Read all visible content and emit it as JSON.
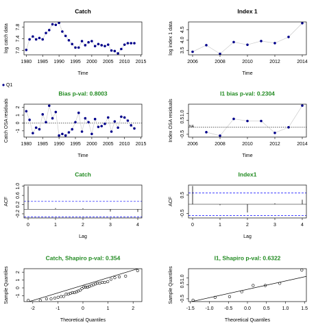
{
  "chart_data": [
    {
      "type": "line",
      "title": "Catch",
      "title_color": "#000000",
      "xlabel": "Time",
      "ylabel": "log catch data",
      "color": "#00008b",
      "x": [
        1980,
        1981,
        1982,
        1983,
        1984,
        1985,
        1986,
        1987,
        1988,
        1989,
        1990,
        1991,
        1992,
        1993,
        1994,
        1995,
        1996,
        1997,
        1998,
        1999,
        2000,
        2001,
        2002,
        2003,
        2004,
        2005,
        2006,
        2007,
        2008,
        2009,
        2010,
        2011,
        2012,
        2013
      ],
      "values": [
        7.02,
        7.38,
        7.48,
        7.38,
        7.43,
        7.38,
        7.6,
        7.7,
        7.9,
        7.88,
        7.95,
        7.65,
        7.5,
        7.35,
        7.22,
        7.1,
        7.1,
        7.32,
        7.18,
        7.28,
        7.32,
        7.15,
        7.22,
        7.18,
        7.15,
        7.2,
        7.0,
        6.98,
        6.9,
        7.05,
        7.2,
        7.25,
        7.25,
        7.25
      ],
      "xlim": [
        1979.3,
        2015.3
      ],
      "ylim": [
        6.85,
        7.98
      ],
      "xticks": [
        1980,
        1985,
        1990,
        1995,
        2000,
        2005,
        2010,
        2015
      ],
      "yticks": [
        {
          "value": 7,
          "label": "7.0"
        },
        7.4,
        7.8
      ]
    },
    {
      "type": "line",
      "title": "Index 1",
      "title_color": "#000000",
      "xlabel": "Time",
      "ylabel": "log index 1 data",
      "color": "#00008b",
      "x": [
        2006,
        2007,
        2008,
        2009,
        2010,
        2011,
        2012,
        2013,
        2014
      ],
      "values": [
        3.43,
        3.75,
        3.33,
        3.9,
        3.77,
        3.95,
        3.85,
        4.15,
        4.82
      ],
      "xlim": [
        2005.7,
        2014.3
      ],
      "ylim": [
        3.28,
        4.88
      ],
      "xticks": [
        2006,
        2008,
        2010,
        2012,
        2014
      ],
      "yticks": [
        3.5,
        {
          "value": 4,
          "label": "4.0"
        },
        4.5
      ]
    },
    {
      "type": "residuals",
      "title": "Bias p-val: 0.8003",
      "title_color": "#228b22",
      "xlabel": "Time",
      "ylabel": "Catch OSA residuals",
      "x": [
        1980,
        1981,
        1982,
        1983,
        1984,
        1985,
        1986,
        1987,
        1988,
        1989,
        1990,
        1991,
        1992,
        1993,
        1994,
        1995,
        1996,
        1997,
        1998,
        1999,
        2000,
        2001,
        2002,
        2003,
        2004,
        2005,
        2006,
        2007,
        2008,
        2009,
        2010,
        2011,
        2012,
        2013
      ],
      "series": [
        {
          "name": "Q1",
          "color": "#00008b",
          "values": [
            1.5,
            0.4,
            -1.3,
            -0.6,
            -0.8,
            1.1,
            0.1,
            2.2,
            0.6,
            1.4,
            -1.6,
            -1.4,
            -1.6,
            -1.2,
            -0.8,
            0.1,
            1.3,
            -1.1,
            0.6,
            0.1,
            -1.4,
            0.5,
            -0.5,
            -0.4,
            -0.1,
            0.7,
            -1.1,
            0.2,
            -0.6,
            0.8,
            0.7,
            0.3,
            -0.3,
            -0.7
          ]
        }
      ],
      "ref_line": 0,
      "xlim": [
        1979.3,
        2015.3
      ],
      "ylim": [
        -1.8,
        2.4
      ],
      "xticks": [
        1980,
        1985,
        1990,
        1995,
        2000,
        2005,
        2010,
        2015
      ],
      "yticks": [
        -1,
        0,
        1,
        2
      ]
    },
    {
      "type": "residuals",
      "title": "I1 bias p-val: 0.2304",
      "title_color": "#228b22",
      "xlabel": "Time",
      "ylabel": "Index OSA residuals",
      "color": "#00008b",
      "x": [
        2006,
        2007,
        2008,
        2009,
        2010,
        2011,
        2012,
        2013,
        2014
      ],
      "values": [
        null,
        -0.35,
        -0.6,
        0.6,
        0.45,
        0.45,
        -0.4,
        0.0,
        1.55
      ],
      "annotation": "NA",
      "ref_line": 0,
      "xlim": [
        2005.7,
        2014.3
      ],
      "ylim": [
        -0.7,
        1.65
      ],
      "xticks": [
        2006,
        2008,
        2010,
        2012,
        2014
      ],
      "yticks": [
        -0.5,
        0.5,
        {
          "value": 1,
          "label": "1.0"
        }
      ]
    },
    {
      "type": "acf",
      "title": "Catch",
      "title_color": "#228b22",
      "xlabel": "Lag",
      "ylabel": "ACF",
      "color": "#000000",
      "ci_color": "#0000ff",
      "x": [
        0,
        1,
        2,
        3,
        4
      ],
      "values": [
        1,
        0.05,
        0.04,
        -0.1,
        -0.12
      ],
      "ci": 0.34,
      "xlim": [
        -0.15,
        4.15
      ],
      "ylim": [
        -0.38,
        1.05
      ],
      "xticks": [
        0,
        1,
        2,
        3,
        4
      ],
      "yticks": [
        -0.2,
        0.2,
        0.6,
        {
          "value": 1,
          "label": "1.0"
        }
      ]
    },
    {
      "type": "acf",
      "title": "Index1",
      "title_color": "#228b22",
      "xlabel": "Lag",
      "ylabel": "ACF",
      "color": "#000000",
      "ci_color": "#0000ff",
      "x": [
        0,
        1,
        2,
        3,
        4
      ],
      "values": [
        1,
        -0.05,
        -0.45,
        0.05,
        0.25
      ],
      "ci": 0.62,
      "xlim": [
        -0.15,
        4.15
      ],
      "ylim": [
        -0.75,
        1.05
      ],
      "xticks": [
        0,
        1,
        2,
        3,
        4
      ],
      "yticks": [
        -0.5,
        0.5
      ]
    },
    {
      "type": "qq",
      "title": "Catch, Shapiro p-val: 0.354",
      "title_color": "#228b22",
      "xlabel": "Theoretical Quantiles",
      "ylabel": "Sample Quantiles",
      "color": "#000000",
      "x": [
        -2.18,
        -1.7,
        -1.45,
        -1.27,
        -1.12,
        -0.99,
        -0.87,
        -0.77,
        -0.67,
        -0.58,
        -0.5,
        -0.42,
        -0.34,
        -0.26,
        -0.19,
        -0.11,
        -0.04,
        0.04,
        0.11,
        0.19,
        0.26,
        0.34,
        0.42,
        0.5,
        0.58,
        0.67,
        0.77,
        0.87,
        0.99,
        1.12,
        1.27,
        1.45,
        1.7,
        2.18
      ],
      "values": [
        -1.6,
        -1.6,
        -1.4,
        -1.4,
        -1.3,
        -1.2,
        -1.1,
        -1.1,
        -0.8,
        -0.8,
        -0.7,
        -0.6,
        -0.6,
        -0.5,
        -0.4,
        -0.3,
        -0.1,
        0.1,
        0.1,
        0.1,
        0.2,
        0.3,
        0.4,
        0.5,
        0.6,
        0.6,
        0.7,
        0.7,
        0.8,
        1.1,
        1.3,
        1.4,
        1.5,
        2.2
      ],
      "qq_line": {
        "x": [
          -2.35,
          2.35
        ],
        "y": [
          -1.95,
          2.6
        ]
      },
      "xlim": [
        -2.35,
        2.35
      ],
      "ylim": [
        -1.75,
        2.45
      ],
      "xticks": [
        -2,
        -1,
        0,
        1,
        2
      ],
      "yticks": [
        -1,
        0,
        1,
        2
      ]
    },
    {
      "type": "qq",
      "title": "I1, Shapiro p-val: 0.6322",
      "title_color": "#228b22",
      "xlabel": "Theoretical Quantiles",
      "ylabel": "Sample Quantiles",
      "color": "#000000",
      "x": [
        -1.43,
        -0.85,
        -0.47,
        -0.15,
        0.15,
        0.47,
        0.85,
        1.43
      ],
      "values": [
        -0.6,
        -0.4,
        -0.35,
        0.0,
        0.45,
        0.45,
        0.6,
        1.55
      ],
      "qq_line": {
        "x": [
          -1.55,
          1.55
        ],
        "y": [
          -0.75,
          1.1
        ]
      },
      "xlim": [
        -1.55,
        1.55
      ],
      "ylim": [
        -0.7,
        1.65
      ],
      "xticks": [
        {
          "value": -1.5,
          "label": "-1.5"
        },
        {
          "value": -1,
          "label": "-1.0"
        },
        -0.5,
        {
          "value": 0,
          "label": "0.0"
        },
        0.5,
        {
          "value": 1,
          "label": "1.0"
        },
        1.5
      ],
      "yticks": [
        -0.5,
        0.5,
        {
          "value": 1,
          "label": "1.0"
        }
      ]
    }
  ]
}
